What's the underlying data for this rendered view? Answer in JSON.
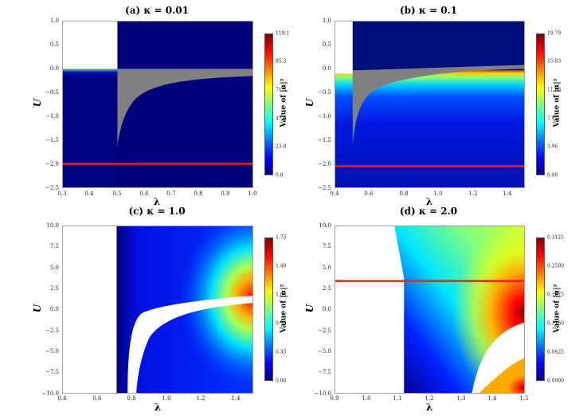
{
  "chart_data": [
    {
      "type": "heatmap",
      "title": "(a) κ = 0.01",
      "xlabel": "λ",
      "ylabel": "U",
      "xlim": [
        0.3,
        1.0
      ],
      "ylim": [
        -2.5,
        1.0
      ],
      "xticks": [
        "0.3",
        "0.4",
        "0.5",
        "0.6",
        "0.7",
        "0.8",
        "0.9",
        "1.0"
      ],
      "yticks": [
        "1.0",
        "0.5",
        "0.0",
        "−0.5",
        "−1.0",
        "−1.5",
        "−2.0",
        "−2.5"
      ],
      "colorbar": {
        "label": "Value of |α|²",
        "range": [
          0.0,
          119.1
        ],
        "ticks": [
          "0.0",
          "23.8",
          "47.6",
          "71.5",
          "95.3",
          "119.1"
        ]
      },
      "red_line_U": -2.0,
      "annotations": [
        "white region λ<0.5, U>0",
        "grey undefined wedge from λ=0.5 down to U≈−1.6"
      ]
    },
    {
      "type": "heatmap",
      "title": "(b) κ = 0.1",
      "xlabel": "λ",
      "ylabel": "U",
      "xlim": [
        0.4,
        1.5
      ],
      "ylim": [
        -2.5,
        1.0
      ],
      "xticks": [
        "0.4",
        "0.6",
        "0.8",
        "1.0",
        "1.2",
        "1.4"
      ],
      "yticks": [
        "1.0",
        "0.5",
        "0.0",
        "−0.5",
        "−1.0",
        "−1.5",
        "−2.0",
        "−2.5"
      ],
      "colorbar": {
        "label": "Value of |α|²",
        "range": [
          0.0,
          19.79
        ],
        "ticks": [
          "0.00",
          "3.96",
          "7.92",
          "11.88",
          "15.83",
          "19.79"
        ]
      },
      "red_line_U": -2.05,
      "annotations": [
        "white region λ<0.5, U>−0.1",
        "grey wedge from λ=0.5 down to U≈−1.6"
      ]
    },
    {
      "type": "heatmap",
      "title": "(c) κ = 1.0",
      "xlabel": "λ",
      "ylabel": "U",
      "xlim": [
        0.4,
        1.5
      ],
      "ylim": [
        -10.0,
        10.0
      ],
      "xticks": [
        "0.4",
        "0.6",
        "0.8",
        "1.0",
        "1.2",
        "1.4"
      ],
      "yticks": [
        "10.0",
        "7.5",
        "5.0",
        "2.5",
        "0.0",
        "−2.5",
        "−5.0",
        "−7.5",
        "−10.0"
      ],
      "colorbar": {
        "label": "Value of |α|²",
        "range": [
          0.0,
          1.75
        ],
        "ticks": [
          "0.00",
          "0.35",
          "0.70",
          "1.05",
          "1.40",
          "1.75"
        ]
      },
      "annotations": [
        "white region λ<0.71",
        "white curved band from λ≈0.8 at U=−10 to λ=1.5 near U≈−0.5"
      ]
    },
    {
      "type": "heatmap",
      "title": "(d) κ = 2.0",
      "xlabel": "λ",
      "ylabel": "U",
      "xlim": [
        0.9,
        1.5
      ],
      "ylim": [
        -10.0,
        10.0
      ],
      "xticks": [
        "0.9",
        "1.0",
        "1.1",
        "1.2",
        "1.3",
        "1.4",
        "1.5"
      ],
      "yticks": [
        "10.0",
        "7.5",
        "5.0",
        "2.5",
        "0.0",
        "−2.5",
        "−5.0",
        "−7.5",
        "−10.0"
      ],
      "colorbar": {
        "label": "Value of |α|²",
        "range": [
          0.0,
          0.3125
        ],
        "ticks": [
          "0.0000",
          "0.0625",
          "0.1250",
          "0.1875",
          "0.2500",
          "0.3125"
        ]
      },
      "red_line_U": 3.3,
      "annotations": [
        "white region λ<1.12",
        "white region lower-right from λ≈1.34",
        "max near λ=1.5, U≈0.3"
      ]
    }
  ],
  "panels": {
    "a": {
      "title": "(a) κ = 0.01",
      "xlabel": "λ",
      "ylabel": "U",
      "cbar_label": "Value of |α|²",
      "xticks": [
        "0.3",
        "0.4",
        "0.5",
        "0.6",
        "0.7",
        "0.8",
        "0.9",
        "1.0"
      ],
      "yticks": [
        "1.0",
        "0.5",
        "0.0",
        "−0.5",
        "−1.0",
        "−1.5",
        "−2.0",
        "−2.5"
      ],
      "cticks": [
        "119.1",
        "95.3",
        "71.5",
        "47.6",
        "23.8",
        "0.0"
      ]
    },
    "b": {
      "title": "(b) κ = 0.1",
      "xlabel": "λ",
      "ylabel": "U",
      "cbar_label": "Value of |α|²",
      "xticks": [
        "0.4",
        "0.6",
        "0.8",
        "1.0",
        "1.2",
        "1.4"
      ],
      "yticks": [
        "1.0",
        "0.5",
        "0.0",
        "−0.5",
        "−1.0",
        "−1.5",
        "−2.0",
        "−2.5"
      ],
      "cticks": [
        "19.79",
        "15.83",
        "11.88",
        "7.92",
        "3.96",
        "0.00"
      ]
    },
    "c": {
      "title": "(c) κ = 1.0",
      "xlabel": "λ",
      "ylabel": "U",
      "cbar_label": "Value of |α|²",
      "xticks": [
        "0.4",
        "0.6",
        "0.8",
        "1.0",
        "1.2",
        "1.4"
      ],
      "yticks": [
        "10.0",
        "7.5",
        "5.0",
        "2.5",
        "0.0",
        "−2.5",
        "−5.0",
        "−7.5",
        "−10.0"
      ],
      "cticks": [
        "1.75",
        "1.40",
        "1.05",
        "0.70",
        "0.35",
        "0.00"
      ]
    },
    "d": {
      "title": "(d) κ = 2.0",
      "xlabel": "λ",
      "ylabel": "U",
      "cbar_label": "Value of |α|²",
      "xticks": [
        "0.9",
        "1.0",
        "1.1",
        "1.2",
        "1.3",
        "1.4",
        "1.5"
      ],
      "yticks": [
        "10.0",
        "7.5",
        "5.0",
        "2.5",
        "0.0",
        "−2.5",
        "−5.0",
        "−7.5",
        "−10.0"
      ],
      "cticks": [
        "0.3125",
        "0.2500",
        "0.1875",
        "0.1250",
        "0.0625",
        "0.0000"
      ]
    }
  }
}
